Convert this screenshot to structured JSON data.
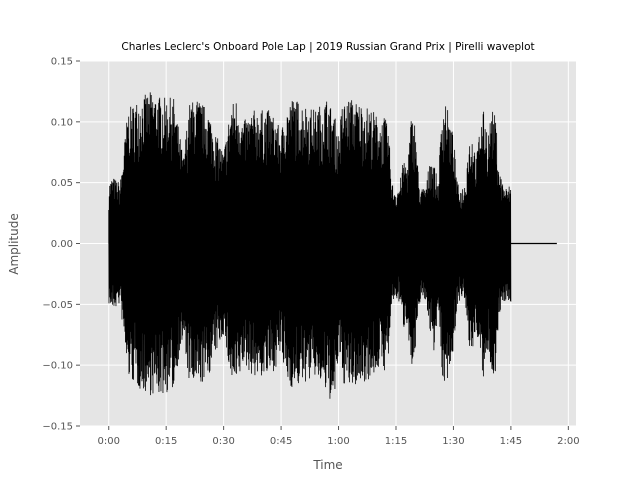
{
  "chart_data": {
    "type": "line",
    "title": "Charles Leclerc's Onboard Pole Lap | 2019 Russian Grand Prix | Pirelli waveplot",
    "xlabel": "Time",
    "ylabel": "Amplitude",
    "x_unit": "seconds",
    "xlim": [
      -7.5,
      122
    ],
    "ylim": [
      -0.15,
      0.15
    ],
    "x_ticks": [
      0,
      15,
      30,
      45,
      60,
      75,
      90,
      105,
      120
    ],
    "x_tick_labels": [
      "0:00",
      "0:15",
      "0:30",
      "0:45",
      "1:00",
      "1:15",
      "1:30",
      "1:45",
      "2:00"
    ],
    "y_ticks": [
      -0.15,
      -0.1,
      -0.05,
      0.0,
      0.05,
      0.1,
      0.15
    ],
    "y_tick_labels": [
      "−0.15",
      "−0.10",
      "−0.05",
      "0.00",
      "0.05",
      "0.10",
      "0.15"
    ],
    "grid": true,
    "background": "#e5e5e5",
    "grid_color": "#ffffff",
    "series_color": "#000000",
    "duration_seconds": 117,
    "audio_end_seconds": 105,
    "series": [
      {
        "envelope": {
          "t": [
            0,
            1,
            3,
            5,
            8,
            11,
            14,
            17,
            18.5,
            19.5,
            21,
            23,
            26,
            28,
            30,
            32,
            33.5,
            35,
            38,
            42,
            44,
            45,
            46,
            48,
            51,
            54,
            57,
            59,
            60,
            61,
            63,
            66,
            69,
            71,
            72,
            73,
            74,
            75,
            76,
            77,
            78,
            79,
            80,
            81,
            82,
            83,
            84,
            85,
            86,
            87,
            88,
            89,
            90,
            91,
            92,
            93,
            94,
            95,
            96,
            97,
            98,
            99,
            100,
            101,
            102,
            103,
            104,
            105
          ],
          "upper": [
            0.05,
            0.055,
            0.05,
            0.11,
            0.12,
            0.125,
            0.12,
            0.12,
            0.09,
            0.07,
            0.115,
            0.12,
            0.11,
            0.09,
            0.075,
            0.115,
            0.12,
            0.1,
            0.11,
            0.11,
            0.1,
            0.09,
            0.11,
            0.12,
            0.115,
            0.11,
            0.12,
            0.105,
            0.09,
            0.115,
            0.12,
            0.115,
            0.11,
            0.1,
            0.105,
            0.095,
            0.05,
            0.045,
            0.05,
            0.07,
            0.065,
            0.105,
            0.1,
            0.05,
            0.045,
            0.05,
            0.075,
            0.065,
            0.05,
            0.11,
            0.12,
            0.1,
            0.09,
            0.05,
            0.045,
            0.05,
            0.085,
            0.09,
            0.07,
            0.1,
            0.11,
            0.09,
            0.11,
            0.105,
            0.06,
            0.05,
            0.045,
            0.05
          ],
          "lower": [
            -0.05,
            -0.055,
            -0.05,
            -0.11,
            -0.12,
            -0.125,
            -0.125,
            -0.12,
            -0.09,
            -0.08,
            -0.115,
            -0.12,
            -0.11,
            -0.09,
            -0.075,
            -0.115,
            -0.12,
            -0.1,
            -0.11,
            -0.11,
            -0.1,
            -0.09,
            -0.11,
            -0.12,
            -0.115,
            -0.11,
            -0.125,
            -0.135,
            -0.09,
            -0.115,
            -0.12,
            -0.115,
            -0.11,
            -0.1,
            -0.105,
            -0.095,
            -0.05,
            -0.045,
            -0.05,
            -0.07,
            -0.065,
            -0.105,
            -0.1,
            -0.05,
            -0.045,
            -0.05,
            -0.075,
            -0.09,
            -0.05,
            -0.11,
            -0.12,
            -0.1,
            -0.09,
            -0.05,
            -0.045,
            -0.05,
            -0.085,
            -0.09,
            -0.07,
            -0.1,
            -0.115,
            -0.09,
            -0.11,
            -0.105,
            -0.06,
            -0.05,
            -0.045,
            -0.05
          ]
        }
      }
    ]
  }
}
